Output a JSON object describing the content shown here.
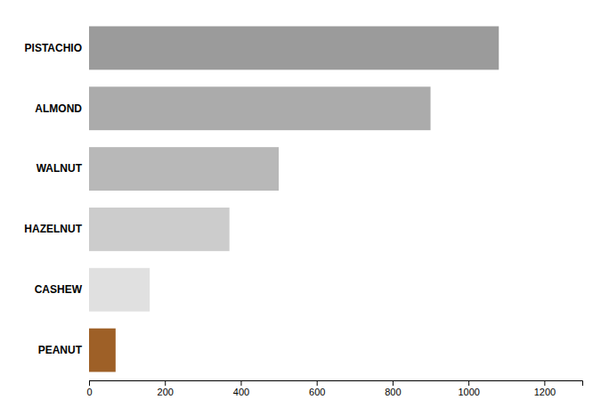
{
  "chart_data": {
    "type": "bar",
    "orientation": "horizontal",
    "categories": [
      "PISTACHIO",
      "ALMOND",
      "WALNUT",
      "HAZELNUT",
      "CASHEW",
      "PEANUT"
    ],
    "values": [
      1080,
      900,
      500,
      370,
      160,
      70
    ],
    "colors": [
      "#9b9b9b",
      "#ababab",
      "#b8b8b8",
      "#cccccc",
      "#e0e0e0",
      "#9e6027"
    ],
    "xlim": [
      0,
      1300
    ],
    "xticks": [
      0,
      200,
      400,
      600,
      800,
      1000,
      1200
    ],
    "grid": false
  }
}
